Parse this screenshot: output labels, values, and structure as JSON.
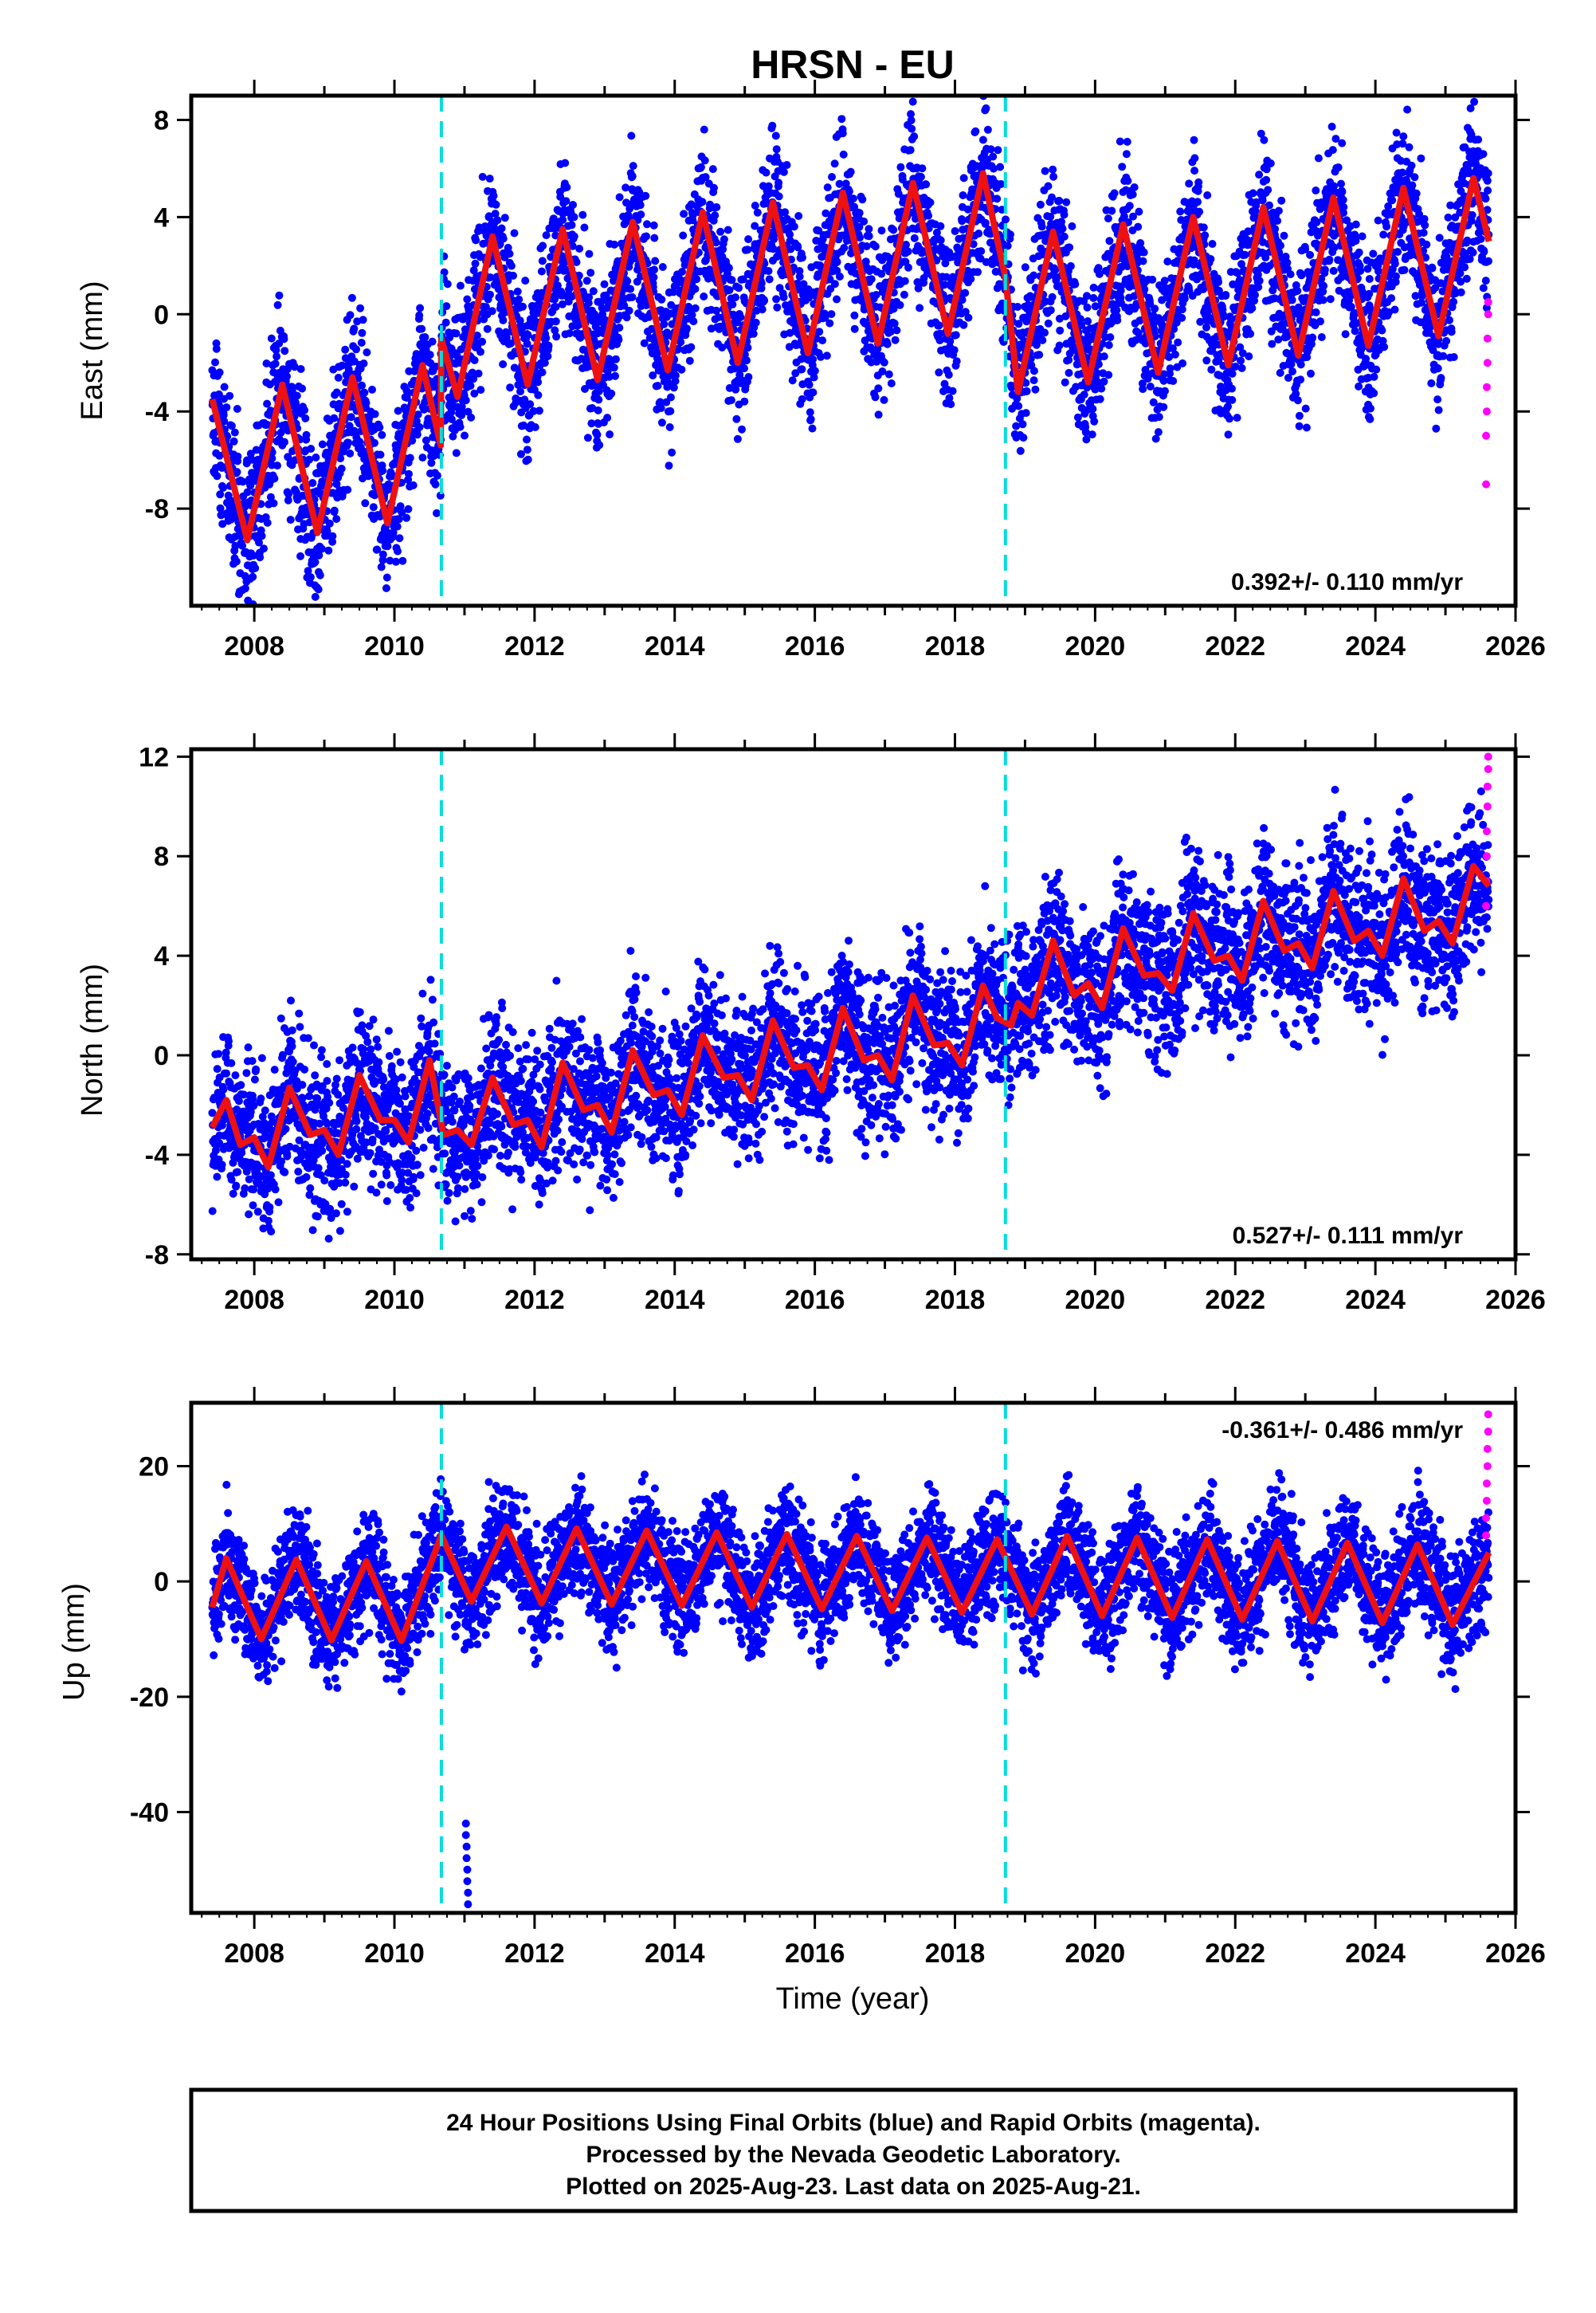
{
  "chart_data": {
    "type": "scatter",
    "title": "HRSN - EU",
    "xlabel": "Time (year)",
    "xlim": [
      2007.1,
      2026.0
    ],
    "xticks": [
      "2008",
      "2010",
      "2012",
      "2014",
      "2016",
      "2018",
      "2020",
      "2022",
      "2024",
      "2026"
    ],
    "xtick_values": [
      2008,
      2010,
      2012,
      2014,
      2016,
      2018,
      2020,
      2022,
      2024,
      2026
    ],
    "event_lines_x": [
      2010.67,
      2018.72
    ],
    "colors": {
      "final_orbits": "#0000ff",
      "rapid_orbits": "#ff00ff",
      "model": "#ee1111",
      "events": "#00dddd"
    },
    "panels": [
      {
        "component": "East",
        "ylabel": "East (mm)",
        "ylim": [
          -12,
          9
        ],
        "yticks": [
          "8",
          "4",
          "0",
          "-4",
          "-8"
        ],
        "ytick_values": [
          8,
          4,
          0,
          -4,
          -8
        ],
        "rate": "0.392+/- 0.110 mm/yr",
        "rate_position": "bottom-right",
        "model": [
          [
            2007.4,
            -3.5
          ],
          [
            2007.9,
            -9.3
          ],
          [
            2008.4,
            -2.9
          ],
          [
            2008.9,
            -9.0
          ],
          [
            2009.4,
            -2.6
          ],
          [
            2009.9,
            -8.6
          ],
          [
            2010.4,
            -2.1
          ],
          [
            2010.66,
            -5.4
          ],
          [
            2010.67,
            -1.0
          ],
          [
            2010.9,
            -3.4
          ],
          [
            2011.4,
            3.2
          ],
          [
            2011.9,
            -2.9
          ],
          [
            2012.4,
            3.5
          ],
          [
            2012.9,
            -2.7
          ],
          [
            2013.4,
            3.8
          ],
          [
            2013.9,
            -2.3
          ],
          [
            2014.4,
            4.2
          ],
          [
            2014.9,
            -2.0
          ],
          [
            2015.4,
            4.6
          ],
          [
            2015.9,
            -1.6
          ],
          [
            2016.4,
            5.0
          ],
          [
            2016.9,
            -1.2
          ],
          [
            2017.4,
            5.4
          ],
          [
            2017.9,
            -0.8
          ],
          [
            2018.4,
            5.8
          ],
          [
            2018.72,
            1.5
          ],
          [
            2018.9,
            -3.2
          ],
          [
            2019.4,
            3.4
          ],
          [
            2019.9,
            -2.8
          ],
          [
            2020.4,
            3.7
          ],
          [
            2020.9,
            -2.4
          ],
          [
            2021.4,
            4.0
          ],
          [
            2021.9,
            -2.1
          ],
          [
            2022.4,
            4.4
          ],
          [
            2022.9,
            -1.7
          ],
          [
            2023.4,
            4.8
          ],
          [
            2023.9,
            -1.3
          ],
          [
            2024.4,
            5.2
          ],
          [
            2024.9,
            -0.9
          ],
          [
            2025.4,
            5.6
          ],
          [
            2025.62,
            3.0
          ]
        ],
        "rapid": [
          [
            2025.58,
            -7.0
          ],
          [
            2025.58,
            -5.0
          ],
          [
            2025.59,
            -4.0
          ],
          [
            2025.59,
            -3.0
          ],
          [
            2025.6,
            -2.0
          ],
          [
            2025.6,
            -1.0
          ],
          [
            2025.61,
            0.0
          ],
          [
            2025.61,
            0.5
          ]
        ]
      },
      {
        "component": "North",
        "ylabel": "North (mm)",
        "ylim": [
          -8.2,
          12.3
        ],
        "yticks": [
          "12",
          "8",
          "4",
          "0",
          "-4",
          "-8"
        ],
        "ytick_values": [
          12,
          8,
          4,
          0,
          -4,
          -8
        ],
        "rate": "0.527+/- 0.111 mm/yr",
        "rate_position": "bottom-right",
        "model": [
          [
            2007.4,
            -2.9
          ],
          [
            2007.6,
            -1.8
          ],
          [
            2007.8,
            -3.6
          ],
          [
            2008.0,
            -3.3
          ],
          [
            2008.2,
            -4.5
          ],
          [
            2008.5,
            -1.3
          ],
          [
            2008.8,
            -3.2
          ],
          [
            2009.0,
            -3.0
          ],
          [
            2009.2,
            -4.0
          ],
          [
            2009.5,
            -0.8
          ],
          [
            2009.8,
            -2.6
          ],
          [
            2010.0,
            -2.6
          ],
          [
            2010.2,
            -3.5
          ],
          [
            2010.5,
            -0.2
          ],
          [
            2010.7,
            -3.2
          ],
          [
            2010.9,
            -3.0
          ],
          [
            2011.1,
            -3.6
          ],
          [
            2011.4,
            -0.9
          ],
          [
            2011.7,
            -2.8
          ],
          [
            2011.9,
            -2.6
          ],
          [
            2012.1,
            -3.7
          ],
          [
            2012.4,
            -0.3
          ],
          [
            2012.7,
            -2.2
          ],
          [
            2012.9,
            -2.0
          ],
          [
            2013.1,
            -3.1
          ],
          [
            2013.4,
            0.2
          ],
          [
            2013.7,
            -1.6
          ],
          [
            2013.9,
            -1.4
          ],
          [
            2014.1,
            -2.4
          ],
          [
            2014.4,
            0.8
          ],
          [
            2014.7,
            -0.9
          ],
          [
            2014.9,
            -0.8
          ],
          [
            2015.1,
            -1.8
          ],
          [
            2015.4,
            1.4
          ],
          [
            2015.7,
            -0.5
          ],
          [
            2015.9,
            -0.4
          ],
          [
            2016.1,
            -1.4
          ],
          [
            2016.4,
            1.9
          ],
          [
            2016.7,
            -0.2
          ],
          [
            2016.9,
            0.0
          ],
          [
            2017.1,
            -1.0
          ],
          [
            2017.4,
            2.4
          ],
          [
            2017.7,
            0.4
          ],
          [
            2017.9,
            0.5
          ],
          [
            2018.1,
            -0.4
          ],
          [
            2018.4,
            2.8
          ],
          [
            2018.6,
            1.5
          ],
          [
            2018.8,
            1.2
          ],
          [
            2018.9,
            2.1
          ],
          [
            2019.1,
            1.6
          ],
          [
            2019.4,
            4.6
          ],
          [
            2019.7,
            2.4
          ],
          [
            2019.9,
            2.9
          ],
          [
            2020.1,
            1.9
          ],
          [
            2020.4,
            5.1
          ],
          [
            2020.7,
            3.2
          ],
          [
            2020.9,
            3.3
          ],
          [
            2021.1,
            2.6
          ],
          [
            2021.4,
            5.7
          ],
          [
            2021.7,
            3.8
          ],
          [
            2021.9,
            4.0
          ],
          [
            2022.1,
            3.0
          ],
          [
            2022.4,
            6.2
          ],
          [
            2022.7,
            4.2
          ],
          [
            2022.9,
            4.5
          ],
          [
            2023.1,
            3.5
          ],
          [
            2023.4,
            6.6
          ],
          [
            2023.7,
            4.6
          ],
          [
            2023.9,
            5.0
          ],
          [
            2024.1,
            4.0
          ],
          [
            2024.4,
            7.1
          ],
          [
            2024.7,
            5.0
          ],
          [
            2024.9,
            5.4
          ],
          [
            2025.1,
            4.5
          ],
          [
            2025.4,
            7.6
          ],
          [
            2025.62,
            6.8
          ]
        ],
        "rapid": [
          [
            2025.58,
            6.0
          ],
          [
            2025.58,
            7.0
          ],
          [
            2025.59,
            8.0
          ],
          [
            2025.59,
            9.0
          ],
          [
            2025.6,
            10.0
          ],
          [
            2025.6,
            10.8
          ],
          [
            2025.61,
            11.5
          ],
          [
            2025.61,
            12.0
          ]
        ]
      },
      {
        "component": "Up",
        "ylabel": "Up (mm)",
        "ylim": [
          -57.5,
          31
        ],
        "yticks": [
          "20",
          "0",
          "-20",
          "-40"
        ],
        "ytick_values": [
          20,
          0,
          -20,
          -40
        ],
        "rate": "-0.361+/- 0.486 mm/yr",
        "rate_position": "top-right",
        "model": [
          [
            2007.4,
            -4.5
          ],
          [
            2007.6,
            4.0
          ],
          [
            2008.1,
            -10.0
          ],
          [
            2008.6,
            3.8
          ],
          [
            2009.1,
            -10.2
          ],
          [
            2009.6,
            3.5
          ],
          [
            2010.1,
            -10.3
          ],
          [
            2010.67,
            8.0
          ],
          [
            2011.1,
            -3.5
          ],
          [
            2011.6,
            9.5
          ],
          [
            2012.1,
            -3.8
          ],
          [
            2012.6,
            9.2
          ],
          [
            2013.1,
            -4.0
          ],
          [
            2013.6,
            8.8
          ],
          [
            2014.1,
            -4.2
          ],
          [
            2014.6,
            8.5
          ],
          [
            2015.1,
            -4.5
          ],
          [
            2015.6,
            8.2
          ],
          [
            2016.1,
            -4.8
          ],
          [
            2016.6,
            7.9
          ],
          [
            2017.1,
            -5.1
          ],
          [
            2017.6,
            7.6
          ],
          [
            2018.1,
            -5.4
          ],
          [
            2018.6,
            7.3
          ],
          [
            2019.1,
            -5.7
          ],
          [
            2019.6,
            7.9
          ],
          [
            2020.1,
            -6.0
          ],
          [
            2020.6,
            7.6
          ],
          [
            2021.1,
            -6.3
          ],
          [
            2021.6,
            7.3
          ],
          [
            2022.1,
            -6.6
          ],
          [
            2022.6,
            7.0
          ],
          [
            2023.1,
            -6.9
          ],
          [
            2023.6,
            6.7
          ],
          [
            2024.1,
            -7.2
          ],
          [
            2024.6,
            6.4
          ],
          [
            2025.1,
            -7.5
          ],
          [
            2025.62,
            5.0
          ]
        ],
        "rapid": [
          [
            2025.58,
            8.0
          ],
          [
            2025.58,
            11.0
          ],
          [
            2025.59,
            14.0
          ],
          [
            2025.59,
            17.0
          ],
          [
            2025.6,
            20.0
          ],
          [
            2025.6,
            23.0
          ],
          [
            2025.61,
            26.0
          ],
          [
            2025.61,
            29.0
          ]
        ],
        "outliers": [
          [
            2011.02,
            -42.0
          ],
          [
            2011.02,
            -44.0
          ],
          [
            2011.03,
            -46.0
          ],
          [
            2011.03,
            -48.0
          ],
          [
            2011.04,
            -50.0
          ],
          [
            2011.04,
            -52.0
          ],
          [
            2011.05,
            -54.0
          ],
          [
            2011.05,
            -56.0
          ]
        ]
      }
    ]
  },
  "footer": {
    "line1": "24 Hour Positions Using Final Orbits (blue) and Rapid Orbits (magenta).",
    "line2": "Processed by the Nevada Geodetic Laboratory.",
    "line3": "Plotted on 2025-Aug-23. Last data on 2025-Aug-21."
  }
}
